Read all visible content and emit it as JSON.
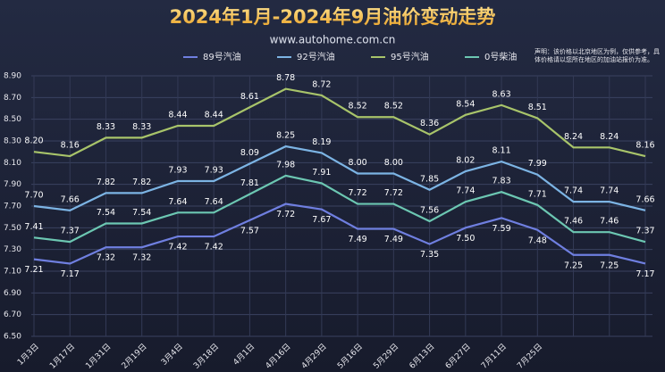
{
  "chart_data": {
    "type": "line",
    "title": "2024年1月-2024年9月油价变动走势",
    "subtitle": "www.autohome.com.cn",
    "note": "声明：该价格以北京地区为例，仅供参考，具体价格请以您所在地区的加油站报价为准。",
    "categories": [
      "1月3日",
      "1月17日",
      "1月31日",
      "2月19日",
      "3月4日",
      "3月18日",
      "4月1日",
      "4月16日",
      "4月29日",
      "5月16日",
      "5月29日",
      "6月13日",
      "6月27日",
      "7月11日",
      "7月25日",
      null,
      null,
      null
    ],
    "series": [
      {
        "name": "89号汽油",
        "color": "#6f7fe0",
        "label_pos": "below",
        "values": [
          7.21,
          7.17,
          7.32,
          7.32,
          7.42,
          7.42,
          7.57,
          7.72,
          7.67,
          7.49,
          7.49,
          7.35,
          7.5,
          7.59,
          7.48,
          7.25,
          7.25,
          7.17
        ],
        "value_labels": [
          "7.21",
          "7.17",
          "7.32",
          "7.32",
          "7.42",
          "7.42",
          "7.57",
          "7.72",
          "7.67",
          "7.49",
          "7.49",
          "7.35",
          "7.50",
          "7.59",
          "7.48",
          "7.25",
          "7.25",
          "7.17"
        ]
      },
      {
        "name": "92号汽油",
        "color": "#7cb4e4",
        "label_pos": "above",
        "values": [
          7.7,
          7.66,
          7.82,
          7.82,
          7.93,
          7.93,
          8.09,
          8.25,
          8.19,
          8.0,
          8.0,
          7.85,
          8.02,
          8.11,
          7.99,
          7.74,
          7.74,
          7.66
        ],
        "value_labels": [
          "7.70",
          "7.66",
          "7.82",
          "7.82",
          "7.93",
          "7.93",
          "8.09",
          "8.25",
          "8.19",
          "8.00",
          "8.00",
          "7.85",
          "8.02",
          "8.11",
          "7.99",
          "7.74",
          "7.74",
          "7.66"
        ]
      },
      {
        "name": "95号汽油",
        "color": "#a8c46a",
        "label_pos": "above",
        "values": [
          8.2,
          8.16,
          8.33,
          8.33,
          8.44,
          8.44,
          8.61,
          8.78,
          8.72,
          8.52,
          8.52,
          8.36,
          8.54,
          8.63,
          8.51,
          8.24,
          8.24,
          8.16
        ],
        "value_labels": [
          "8.20",
          "8.16",
          "8.33",
          "8.33",
          "8.44",
          "8.44",
          "8.61",
          "8.78",
          "8.72",
          "8.52",
          "8.52",
          "8.36",
          "8.54",
          "8.63",
          "8.51",
          "8.24",
          "8.24",
          "8.16"
        ]
      },
      {
        "name": "0号柴油",
        "color": "#6cc7b2",
        "label_pos": "above",
        "values": [
          7.41,
          7.37,
          7.54,
          7.54,
          7.64,
          7.64,
          7.81,
          7.98,
          7.91,
          7.72,
          7.72,
          7.56,
          7.74,
          7.83,
          7.71,
          7.46,
          7.46,
          7.37
        ],
        "value_labels": [
          "7.41",
          "7.37",
          "7.54",
          "7.54",
          "7.64",
          "7.64",
          "7.81",
          "7.98",
          "7.91",
          "7.72",
          "7.72",
          "7.56",
          "7.74",
          "7.83",
          "7.71",
          "7.46",
          "7.46",
          "7.37"
        ]
      }
    ],
    "ylim": [
      6.5,
      8.9
    ],
    "yticks": [
      {
        "value": 6.5,
        "label": "6.50"
      },
      {
        "value": 6.7,
        "label": "6.70"
      },
      {
        "value": 6.9,
        "label": "6.90"
      },
      {
        "value": 7.1,
        "label": "7.10"
      },
      {
        "value": 7.3,
        "label": "7.30"
      },
      {
        "value": 7.5,
        "label": "7.50"
      },
      {
        "value": 7.7,
        "label": "7.70"
      },
      {
        "value": 7.9,
        "label": "7.90"
      },
      {
        "value": 8.1,
        "label": "8.10"
      },
      {
        "value": 8.3,
        "label": "8.30"
      },
      {
        "value": 8.5,
        "label": "8.50"
      },
      {
        "value": 8.7,
        "label": "8.70"
      },
      {
        "value": 8.9,
        "label": "8.90"
      }
    ],
    "grid": true,
    "legend": "top"
  }
}
